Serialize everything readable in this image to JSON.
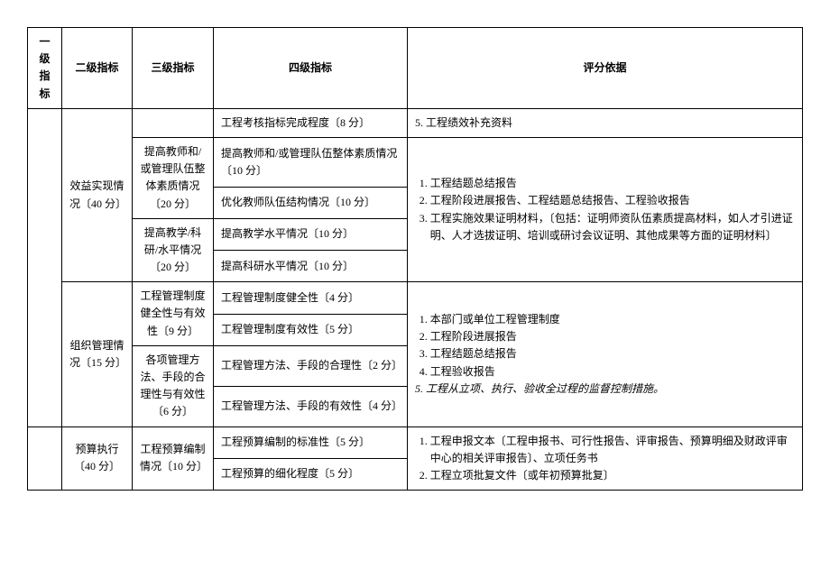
{
  "headers": {
    "c1": "一级指标",
    "c2": "二级指标",
    "c3": "三级指标",
    "c4": "四级指标",
    "c5": "评分依据"
  },
  "lvl2": {
    "benefit": "效益实现情况〔40 分〕",
    "org": "组织管理情况〔15 分〕",
    "budget": "预算执行〔40 分〕"
  },
  "lvl3": {
    "teacher": "提高教师和/或管理队伍整体素质情况〔20 分〕",
    "teachRes": "提高教学/科研/水平情况〔20 分〕",
    "sysHealth": "工程管理制度健全性与有效性〔9 分〕",
    "methods": "各项管理方法、手段的合理性与有效性〔6 分〕",
    "budgetPrep": "工程预算编制情况〔10 分〕"
  },
  "lvl4": {
    "r1": "工程考核指标完成程度〔8 分〕",
    "r2": "提高教师和/或管理队伍整体素质情况〔10 分〕",
    "r3": "优化教师队伍结构情况〔10 分〕",
    "r4": "提高教学水平情况〔10 分〕",
    "r5": "提高科研水平情况〔10 分〕",
    "r6": "工程管理制度健全性〔4 分〕",
    "r7": "工程管理制度有效性〔5 分〕",
    "r8": "工程管理方法、手段的合理性〔2 分〕",
    "r9": "工程管理方法、手段的有效性〔4 分〕",
    "r10": "工程预算编制的标准性〔5 分〕",
    "r11": "工程预算的细化程度〔5 分〕"
  },
  "basis": {
    "b1_5": "5. 工程绩效补充资料",
    "b2_1": "工程结题总结报告",
    "b2_2": "工程阶段进展报告、工程结题总结报告、工程验收报告",
    "b2_3": "工程实施效果证明材料，〔包括：证明师资队伍素质提高材料，如人才引进证明、人才选拔证明、培训或研讨会议证明、其他成果等方面的证明材料〕",
    "b3_1": "本部门或单位工程管理制度",
    "b3_2": "工程阶段进展报告",
    "b3_3": "工程结题总结报告",
    "b3_4": "工程验收报告",
    "b3_5": "5. 工程从立项、执行、验收全过程的监督控制措施。",
    "b4_1": "工程申报文本〔工程申报书、可行性报告、评审报告、预算明细及财政评审中心的相关评审报告〕、立项任务书",
    "b4_2": "工程立项批复文件〔或年初预算批复〕"
  }
}
